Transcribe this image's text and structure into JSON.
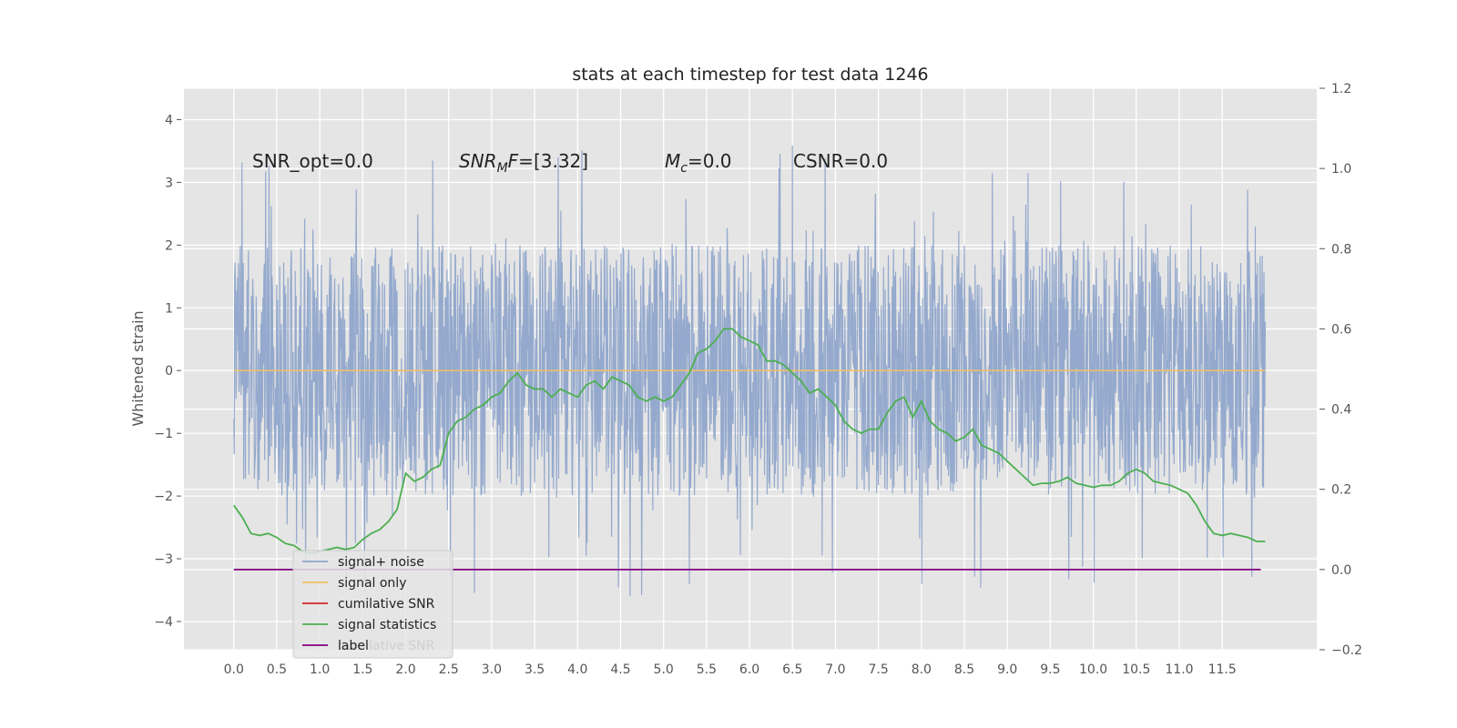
{
  "chart_data": {
    "type": "line",
    "title": "stats at each timestep for test data 1246",
    "xlabel": "",
    "ylabel": "Whitened strain",
    "y2label": "",
    "xlim": [
      -0.58,
      12.6
    ],
    "ylim": [
      -4.45,
      4.5
    ],
    "y2lim": [
      -0.2,
      1.2
    ],
    "grid": true,
    "x_ticks": [
      "0.0",
      "0.5",
      "1.0",
      "1.5",
      "2.0",
      "2.5",
      "3.0",
      "3.5",
      "4.0",
      "4.5",
      "5.0",
      "5.5",
      "6.0",
      "6.5",
      "7.0",
      "7.5",
      "8.0",
      "8.5",
      "9.0",
      "9.5",
      "10.0",
      "10.5",
      "11.0",
      "11.5"
    ],
    "y_ticks": [
      "4",
      "3",
      "2",
      "1",
      "0",
      "−1",
      "−2",
      "−3",
      "−4"
    ],
    "y2_ticks": [
      "1.2",
      "1.0",
      "0.8",
      "0.6",
      "0.4",
      "0.2",
      "0.0",
      "−0.2"
    ],
    "annotations": [
      {
        "name": "snr-opt",
        "text": "SNR_opt=0.0",
        "x": 0.2,
        "y": 3.3
      },
      {
        "name": "snr-mf",
        "text": "[3.32]",
        "label_main": "SNR",
        "label_sub": "M",
        "label_tail": "F",
        "x": 2.6,
        "y": 3.3
      },
      {
        "name": "mc",
        "text": "=0.0",
        "label_main": "M",
        "label_sub": "c",
        "x": 5.0,
        "y": 3.3
      },
      {
        "name": "csnr",
        "text": "CSNR=0.0",
        "x": 6.5,
        "y": 3.3
      }
    ],
    "legend": {
      "placement": "lower-left",
      "entries": [
        {
          "name": "signal+ noise",
          "color": "#8fa5cb"
        },
        {
          "name": "signal only",
          "color": "#f2c063"
        },
        {
          "name": "cumilative SNR",
          "color": "#d62728"
        },
        {
          "name": "signal statistics",
          "color": "#4caf50"
        },
        {
          "name": "label",
          "color": "#800080"
        }
      ],
      "overlap_text": "cumilative SNR"
    },
    "series": [
      {
        "name": "signal+ noise",
        "axis": "left",
        "color": "#8fa5cb",
        "x_start": 0.0,
        "x_end": 12.0,
        "spread_core": 2.0,
        "spread_tail": 3.6
      },
      {
        "name": "signal only",
        "axis": "left",
        "color": "#f2c063",
        "x": [
          0.0,
          12.0
        ],
        "y": [
          0.0,
          0.0
        ]
      },
      {
        "name": "signal statistics",
        "axis": "right",
        "color": "#4caf50",
        "x": [
          0.0,
          0.1,
          0.2,
          0.3,
          0.4,
          0.5,
          0.6,
          0.7,
          0.8,
          0.9,
          1.0,
          1.1,
          1.2,
          1.3,
          1.4,
          1.5,
          1.6,
          1.7,
          1.8,
          1.9,
          2.0,
          2.1,
          2.2,
          2.3,
          2.4,
          2.5,
          2.6,
          2.7,
          2.8,
          2.9,
          3.0,
          3.1,
          3.2,
          3.3,
          3.4,
          3.5,
          3.6,
          3.7,
          3.8,
          3.9,
          4.0,
          4.1,
          4.2,
          4.3,
          4.4,
          4.5,
          4.6,
          4.7,
          4.8,
          4.9,
          5.0,
          5.1,
          5.2,
          5.3,
          5.4,
          5.5,
          5.6,
          5.7,
          5.8,
          5.9,
          6.0,
          6.1,
          6.2,
          6.3,
          6.4,
          6.5,
          6.6,
          6.7,
          6.8,
          6.9,
          7.0,
          7.1,
          7.2,
          7.3,
          7.4,
          7.5,
          7.6,
          7.7,
          7.8,
          7.9,
          8.0,
          8.1,
          8.2,
          8.3,
          8.4,
          8.5,
          8.6,
          8.7,
          8.8,
          8.9,
          9.0,
          9.1,
          9.2,
          9.3,
          9.4,
          9.5,
          9.6,
          9.7,
          9.8,
          9.9,
          10.0,
          10.1,
          10.2,
          10.3,
          10.4,
          10.5,
          10.6,
          10.7,
          10.8,
          10.9,
          11.0,
          11.1,
          11.2,
          11.3,
          11.4,
          11.5,
          11.6,
          11.7,
          11.8,
          11.9,
          12.0
        ],
        "y": [
          0.16,
          0.13,
          0.09,
          0.085,
          0.09,
          0.08,
          0.065,
          0.06,
          0.045,
          0.04,
          0.045,
          0.05,
          0.055,
          0.05,
          0.055,
          0.075,
          0.09,
          0.1,
          0.12,
          0.15,
          0.24,
          0.22,
          0.23,
          0.25,
          0.26,
          0.34,
          0.37,
          0.38,
          0.4,
          0.41,
          0.43,
          0.44,
          0.47,
          0.49,
          0.46,
          0.45,
          0.45,
          0.43,
          0.45,
          0.44,
          0.43,
          0.46,
          0.47,
          0.45,
          0.48,
          0.47,
          0.46,
          0.43,
          0.42,
          0.43,
          0.42,
          0.43,
          0.46,
          0.49,
          0.54,
          0.55,
          0.57,
          0.6,
          0.6,
          0.58,
          0.57,
          0.56,
          0.52,
          0.52,
          0.51,
          0.49,
          0.47,
          0.44,
          0.45,
          0.43,
          0.41,
          0.37,
          0.35,
          0.34,
          0.35,
          0.35,
          0.39,
          0.42,
          0.43,
          0.38,
          0.42,
          0.37,
          0.35,
          0.34,
          0.32,
          0.33,
          0.35,
          0.31,
          0.3,
          0.29,
          0.27,
          0.25,
          0.23,
          0.21,
          0.215,
          0.215,
          0.22,
          0.23,
          0.215,
          0.21,
          0.205,
          0.21,
          0.21,
          0.22,
          0.24,
          0.25,
          0.24,
          0.22,
          0.215,
          0.21,
          0.2,
          0.19,
          0.16,
          0.12,
          0.09,
          0.085,
          0.09,
          0.085,
          0.08,
          0.07,
          0.07
        ]
      },
      {
        "name": "label",
        "axis": "right",
        "color": "#800080",
        "x": [
          0.0,
          11.95
        ],
        "y": [
          0.0,
          0.0
        ]
      }
    ]
  }
}
